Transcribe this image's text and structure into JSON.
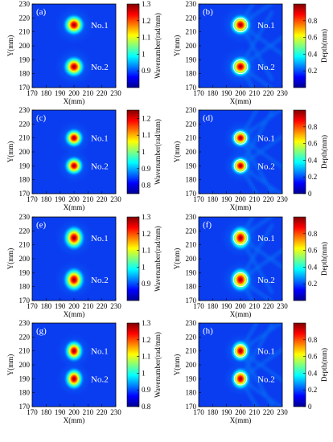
{
  "chart_data": [
    {
      "type": "heatmap",
      "panel_label": "(a)",
      "xlabel": "X(mm)",
      "ylabel": "Y(mm)",
      "xlim": [
        170,
        230
      ],
      "ylim": [
        170,
        230
      ],
      "xticks": [
        "170",
        "180",
        "190",
        "200",
        "210",
        "220",
        "230"
      ],
      "yticks": [
        "170",
        "180",
        "190",
        "200",
        "210",
        "220",
        "230"
      ],
      "colorbar": {
        "label": "Wavenumber(rad/mm)",
        "range": [
          0.8,
          1.3
        ],
        "ticks": [
          "0.9",
          "1",
          "1.1",
          "1.2",
          "1.3"
        ]
      },
      "defects": [
        {
          "label": "No.1",
          "x": 200,
          "y": 215,
          "peak": 1.3
        },
        {
          "label": "No.2",
          "x": 200,
          "y": 185,
          "peak": 1.3
        }
      ]
    },
    {
      "type": "heatmap",
      "panel_label": "(b)",
      "xlabel": "X(mm)",
      "ylabel": "Y(mm)",
      "xlim": [
        170,
        230
      ],
      "ylim": [
        170,
        230
      ],
      "xticks": [
        "170",
        "180",
        "190",
        "200",
        "210",
        "220",
        "230"
      ],
      "yticks": [
        "170",
        "180",
        "190",
        "200",
        "210",
        "220",
        "230"
      ],
      "colorbar": {
        "label": "Depth(mm)",
        "range": [
          0,
          1.0
        ],
        "ticks": [
          "0.2",
          "0.4",
          "0.6",
          "0.8"
        ]
      },
      "defects": [
        {
          "label": "No.1",
          "x": 200,
          "y": 215,
          "peak": 1.0
        },
        {
          "label": "No.2",
          "x": 200,
          "y": 185,
          "peak": 1.0
        }
      ]
    },
    {
      "type": "heatmap",
      "panel_label": "(c)",
      "xlabel": "X(mm)",
      "ylabel": "Y(mm)",
      "xlim": [
        170,
        230
      ],
      "ylim": [
        170,
        230
      ],
      "xticks": [
        "170",
        "180",
        "190",
        "200",
        "210",
        "220",
        "230"
      ],
      "yticks": [
        "170",
        "180",
        "190",
        "200",
        "210",
        "220",
        "230"
      ],
      "colorbar": {
        "label": "Wavenumber(rad/mm)",
        "range": [
          0.75,
          1.25
        ],
        "ticks": [
          "0.8",
          "0.9",
          "1",
          "1.1",
          "1.2"
        ]
      },
      "defects": [
        {
          "label": "No.1",
          "x": 200,
          "y": 210,
          "peak": 1.25
        },
        {
          "label": "No.2",
          "x": 200,
          "y": 190,
          "peak": 1.25
        }
      ]
    },
    {
      "type": "heatmap",
      "panel_label": "(d)",
      "xlabel": "X(mm)",
      "ylabel": "Y(mm)",
      "xlim": [
        170,
        230
      ],
      "ylim": [
        170,
        230
      ],
      "xticks": [
        "170",
        "180",
        "190",
        "200",
        "210",
        "220",
        "230"
      ],
      "yticks": [
        "170",
        "180",
        "190",
        "200",
        "210",
        "220",
        "230"
      ],
      "colorbar": {
        "label": "Depth(mm)",
        "range": [
          0,
          1.0
        ],
        "ticks": [
          "0",
          "0.2",
          "0.4",
          "0.6",
          "0.8"
        ]
      },
      "defects": [
        {
          "label": "No.1",
          "x": 200,
          "y": 210,
          "peak": 1.0
        },
        {
          "label": "No.2",
          "x": 200,
          "y": 190,
          "peak": 1.0
        }
      ]
    },
    {
      "type": "heatmap",
      "panel_label": "(e)",
      "xlabel": "X(mm)",
      "ylabel": "Y(mm)",
      "xlim": [
        170,
        230
      ],
      "ylim": [
        170,
        230
      ],
      "xticks": [
        "170",
        "180",
        "190",
        "200",
        "210",
        "220",
        "230"
      ],
      "yticks": [
        "170",
        "180",
        "190",
        "200",
        "210",
        "220",
        "230"
      ],
      "colorbar": {
        "label": "Wavenumber(rad/mm)",
        "range": [
          0.8,
          1.3
        ],
        "ticks": [
          "0.9",
          "1",
          "1.1",
          "1.2",
          "1.3"
        ]
      },
      "defects": [
        {
          "label": "No.1",
          "x": 200,
          "y": 215,
          "peak": 1.3
        },
        {
          "label": "No.2",
          "x": 200,
          "y": 185,
          "peak": 1.3
        }
      ]
    },
    {
      "type": "heatmap",
      "panel_label": "(f)",
      "xlabel": "X(mm)",
      "ylabel": "Y(mm)",
      "xlim": [
        170,
        230
      ],
      "ylim": [
        170,
        230
      ],
      "xticks": [
        "170",
        "180",
        "190",
        "200",
        "210",
        "220",
        "230"
      ],
      "yticks": [
        "170",
        "180",
        "190",
        "200",
        "210",
        "220",
        "230"
      ],
      "colorbar": {
        "label": "Depth(mm)",
        "range": [
          0,
          1.0
        ],
        "ticks": [
          "0.2",
          "0.4",
          "0.6",
          "0.8"
        ]
      },
      "defects": [
        {
          "label": "No.1",
          "x": 200,
          "y": 215,
          "peak": 1.0
        },
        {
          "label": "No.2",
          "x": 200,
          "y": 185,
          "peak": 1.0
        }
      ]
    },
    {
      "type": "heatmap",
      "panel_label": "(g)",
      "xlabel": "X(mm)",
      "ylabel": "Y(mm)",
      "xlim": [
        170,
        230
      ],
      "ylim": [
        170,
        230
      ],
      "xticks": [
        "170",
        "180",
        "190",
        "200",
        "210",
        "220",
        "230"
      ],
      "yticks": [
        "170",
        "180",
        "190",
        "200",
        "210",
        "220",
        "230"
      ],
      "colorbar": {
        "label": "Wavenumber(rad/mm)",
        "range": [
          0.8,
          1.3
        ],
        "ticks": [
          "0.8",
          "0.9",
          "1",
          "1.1",
          "1.2",
          "1.3"
        ]
      },
      "defects": [
        {
          "label": "No.1",
          "x": 200,
          "y": 210,
          "peak": 1.3
        },
        {
          "label": "No.2",
          "x": 200,
          "y": 190,
          "peak": 1.3
        }
      ]
    },
    {
      "type": "heatmap",
      "panel_label": "(h)",
      "xlabel": "X(mm)",
      "ylabel": "Y(mm)",
      "xlim": [
        170,
        230
      ],
      "ylim": [
        170,
        230
      ],
      "xticks": [
        "170",
        "180",
        "190",
        "200",
        "210",
        "220",
        "230"
      ],
      "yticks": [
        "170",
        "180",
        "190",
        "200",
        "210",
        "220",
        "230"
      ],
      "colorbar": {
        "label": "Depth(mm)",
        "range": [
          0,
          1.0
        ],
        "ticks": [
          "0",
          "0.2",
          "0.4",
          "0.6",
          "0.8"
        ]
      },
      "defects": [
        {
          "label": "No.1",
          "x": 200,
          "y": 210,
          "peak": 1.0
        },
        {
          "label": "No.2",
          "x": 200,
          "y": 190,
          "peak": 1.0
        }
      ]
    }
  ]
}
